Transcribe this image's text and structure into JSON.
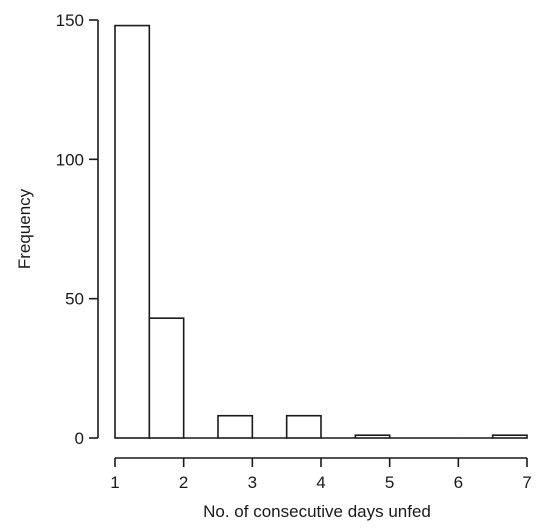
{
  "chart_data": {
    "type": "bar",
    "subtype": "histogram",
    "title": "",
    "xlabel": "No. of consecutive days unfed",
    "ylabel": "Frequency",
    "bins": [
      {
        "from": 1.0,
        "to": 1.5,
        "value": 148
      },
      {
        "from": 1.5,
        "to": 2.0,
        "value": 43
      },
      {
        "from": 2.0,
        "to": 2.5,
        "value": 0
      },
      {
        "from": 2.5,
        "to": 3.0,
        "value": 8
      },
      {
        "from": 3.0,
        "to": 3.5,
        "value": 0
      },
      {
        "from": 3.5,
        "to": 4.0,
        "value": 8
      },
      {
        "from": 4.0,
        "to": 4.5,
        "value": 0
      },
      {
        "from": 4.5,
        "to": 5.0,
        "value": 1
      },
      {
        "from": 5.0,
        "to": 5.5,
        "value": 0
      },
      {
        "from": 5.5,
        "to": 6.0,
        "value": 0
      },
      {
        "from": 6.0,
        "to": 6.5,
        "value": 0
      },
      {
        "from": 6.5,
        "to": 7.0,
        "value": 1
      }
    ],
    "xlim": [
      1,
      7
    ],
    "ylim": [
      0,
      150
    ],
    "x_ticks": [
      "1",
      "2",
      "3",
      "4",
      "5",
      "6",
      "7"
    ],
    "y_ticks": [
      "0",
      "50",
      "100",
      "150"
    ],
    "grid": false,
    "colors": {
      "bar_fill": "#ffffff",
      "bar_stroke": "#1a1a1a",
      "axis": "#1a1a1a"
    }
  }
}
